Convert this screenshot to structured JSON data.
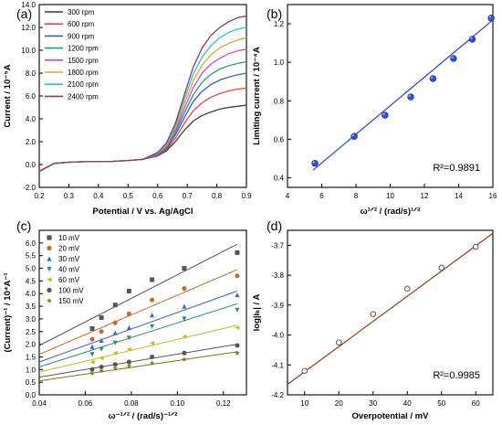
{
  "chart_data": [
    {
      "panel": "(a)",
      "type": "line",
      "xlabel": "Potential / V vs. Ag/AgCl",
      "ylabel": "Current / 10⁻⁵A",
      "xlim": [
        0.2,
        0.9
      ],
      "ylim": [
        -2.0,
        14.0
      ],
      "xticks": [
        "0.2",
        "0.3",
        "0.4",
        "0.5",
        "0.6",
        "0.7",
        "0.8",
        "0.9"
      ],
      "yticks": [
        "-2.0",
        "0.0",
        "2.0",
        "4.0",
        "6.0",
        "8.0",
        "10.0",
        "12.0",
        "14.0"
      ],
      "legend_position": "top-left",
      "x": [
        0.2,
        0.25,
        0.3,
        0.35,
        0.4,
        0.45,
        0.5,
        0.55,
        0.6,
        0.63,
        0.66,
        0.69,
        0.72,
        0.75,
        0.78,
        0.81,
        0.84,
        0.87,
        0.9
      ],
      "series": [
        {
          "name": "300 rpm",
          "color": "#3c3c3c",
          "values": [
            -0.6,
            0.1,
            0.2,
            0.25,
            0.25,
            0.28,
            0.35,
            0.45,
            0.75,
            1.2,
            2.0,
            3.0,
            3.8,
            4.3,
            4.6,
            4.85,
            5.0,
            5.1,
            5.2
          ]
        },
        {
          "name": "600 rpm",
          "color": "#e8453c",
          "values": [
            -0.6,
            0.1,
            0.2,
            0.25,
            0.25,
            0.28,
            0.35,
            0.45,
            0.8,
            1.3,
            2.3,
            3.6,
            4.7,
            5.4,
            5.9,
            6.2,
            6.45,
            6.6,
            6.7
          ]
        },
        {
          "name": "900 rpm",
          "color": "#3a59d8",
          "values": [
            -0.6,
            0.1,
            0.2,
            0.25,
            0.25,
            0.28,
            0.35,
            0.45,
            0.85,
            1.4,
            2.6,
            4.1,
            5.5,
            6.4,
            7.0,
            7.4,
            7.65,
            7.85,
            8.0
          ]
        },
        {
          "name": "1200 rpm",
          "color": "#2a9d6f",
          "values": [
            -0.6,
            0.1,
            0.2,
            0.25,
            0.25,
            0.28,
            0.35,
            0.45,
            0.9,
            1.5,
            2.8,
            4.5,
            6.1,
            7.2,
            7.9,
            8.35,
            8.65,
            8.85,
            9.0
          ]
        },
        {
          "name": "1500 rpm",
          "color": "#d447d9",
          "values": [
            -0.6,
            0.1,
            0.2,
            0.25,
            0.25,
            0.28,
            0.35,
            0.45,
            0.95,
            1.6,
            3.0,
            4.9,
            6.7,
            8.0,
            8.8,
            9.3,
            9.7,
            9.95,
            10.1
          ]
        },
        {
          "name": "1800 rpm",
          "color": "#e8a23a",
          "values": [
            -0.6,
            0.1,
            0.2,
            0.25,
            0.25,
            0.28,
            0.35,
            0.45,
            1.0,
            1.7,
            3.2,
            5.3,
            7.3,
            8.7,
            9.6,
            10.2,
            10.6,
            10.9,
            11.1
          ]
        },
        {
          "name": "2100 rpm",
          "color": "#2bc4d6",
          "values": [
            -0.6,
            0.1,
            0.2,
            0.25,
            0.25,
            0.28,
            0.35,
            0.45,
            1.0,
            1.8,
            3.4,
            5.7,
            7.9,
            9.4,
            10.4,
            11.1,
            11.55,
            11.85,
            12.0
          ]
        },
        {
          "name": "2400 rpm",
          "color": "#8f3a57",
          "values": [
            -0.6,
            0.1,
            0.2,
            0.25,
            0.25,
            0.28,
            0.35,
            0.45,
            1.05,
            1.9,
            3.6,
            6.1,
            8.5,
            10.2,
            11.3,
            12.0,
            12.5,
            12.85,
            13.0
          ]
        }
      ]
    },
    {
      "panel": "(b)",
      "type": "scatter",
      "xlabel": "ω¹ᐟ² / (rad/s)¹ᐟ²",
      "ylabel": "Limiting current / 10⁻⁴A",
      "xlim": [
        4,
        16
      ],
      "ylim": [
        0.35,
        1.3
      ],
      "xticks": [
        "4",
        "6",
        "8",
        "10",
        "12",
        "14",
        "16"
      ],
      "yticks": [
        "0.4",
        "0.6",
        "0.8",
        "1.0",
        "1.2"
      ],
      "points": {
        "x": [
          5.6,
          7.9,
          9.7,
          11.2,
          12.5,
          13.7,
          14.8,
          15.9
        ],
        "y": [
          0.475,
          0.615,
          0.725,
          0.82,
          0.915,
          1.02,
          1.12,
          1.23
        ]
      },
      "fit": {
        "x": [
          5.5,
          16.0
        ],
        "y": [
          0.44,
          1.22
        ]
      },
      "annotation": "R²=0.9891",
      "marker_color": "#2f4fd6",
      "line_color": "#2b3fd0"
    },
    {
      "panel": "(c)",
      "type": "scatter",
      "xlabel": "ω⁻¹ᐟ² / (rad/s)⁻¹ᐟ²",
      "ylabel": "(Current)⁻¹ / 10⁴A⁻¹",
      "xlim": [
        0.04,
        0.13
      ],
      "ylim": [
        0.0,
        6.5
      ],
      "xticks": [
        "0.04",
        "0.06",
        "0.08",
        "0.10",
        "0.12"
      ],
      "yticks": [
        "0.0",
        "0.5",
        "1.0",
        "1.5",
        "2.0",
        "2.5",
        "3.0",
        "3.5",
        "4.0",
        "4.5",
        "5.0",
        "5.5",
        "6.0"
      ],
      "legend_position": "top-left",
      "x": [
        0.063,
        0.067,
        0.073,
        0.079,
        0.089,
        0.103,
        0.126
      ],
      "series": [
        {
          "name": "10 mV",
          "color": "#555555",
          "marker": "square",
          "values": [
            2.62,
            3.05,
            3.55,
            4.1,
            4.55,
            5.0,
            5.62
          ],
          "fit": [
            1.95,
            5.95
          ]
        },
        {
          "name": "20 mV",
          "color": "#c06a2b",
          "marker": "circle",
          "values": [
            2.2,
            2.5,
            2.85,
            3.2,
            3.75,
            4.2,
            4.7
          ],
          "fit": [
            1.6,
            4.95
          ]
        },
        {
          "name": "30 mV",
          "color": "#3a5de0",
          "marker": "triangle-up",
          "values": [
            1.9,
            2.15,
            2.45,
            2.65,
            3.15,
            3.5,
            3.95
          ],
          "fit": [
            1.3,
            4.1
          ]
        },
        {
          "name": "40 mV",
          "color": "#2e8b6a",
          "marker": "triangle-down",
          "values": [
            1.6,
            1.8,
            2.05,
            2.25,
            2.7,
            3.0,
            3.35
          ],
          "fit": [
            1.1,
            3.6
          ]
        },
        {
          "name": "60 mV",
          "color": "#b8c21e",
          "marker": "triangle-left",
          "values": [
            1.3,
            1.45,
            1.65,
            1.8,
            2.05,
            2.3,
            2.65
          ],
          "fit": [
            0.9,
            2.75
          ]
        },
        {
          "name": "100 mV",
          "color": "#555555",
          "marker": "circle",
          "values": [
            1.0,
            1.1,
            1.2,
            1.3,
            1.5,
            1.65,
            1.95
          ],
          "fit": [
            0.7,
            2.0
          ]
        },
        {
          "name": "150 mV",
          "color": "#7a7a10",
          "marker": "star",
          "values": [
            0.85,
            0.95,
            1.05,
            1.15,
            1.25,
            1.4,
            1.65
          ],
          "fit": [
            0.55,
            1.7
          ]
        }
      ]
    },
    {
      "panel": "(d)",
      "type": "scatter",
      "xlabel": "Overpotential / mV",
      "ylabel": "log|iₖ| / A",
      "xlim": [
        5,
        65
      ],
      "ylim": [
        -4.2,
        -3.65
      ],
      "xticks": [
        "10",
        "20",
        "30",
        "40",
        "50",
        "60"
      ],
      "yticks": [
        "-4.2",
        "-4.1",
        "-4.0",
        "-3.9",
        "-3.8",
        "-3.7"
      ],
      "points": {
        "x": [
          10,
          20,
          30,
          40,
          50,
          60
        ],
        "y": [
          -4.12,
          -4.025,
          -3.93,
          -3.845,
          -3.775,
          -3.705
        ]
      },
      "fit": {
        "x": [
          5,
          65
        ],
        "y": [
          -4.165,
          -3.66
        ]
      },
      "annotation": "R²=0.9985",
      "marker_color": "#5a5a5a",
      "line_color": "#8b3a2a"
    }
  ]
}
